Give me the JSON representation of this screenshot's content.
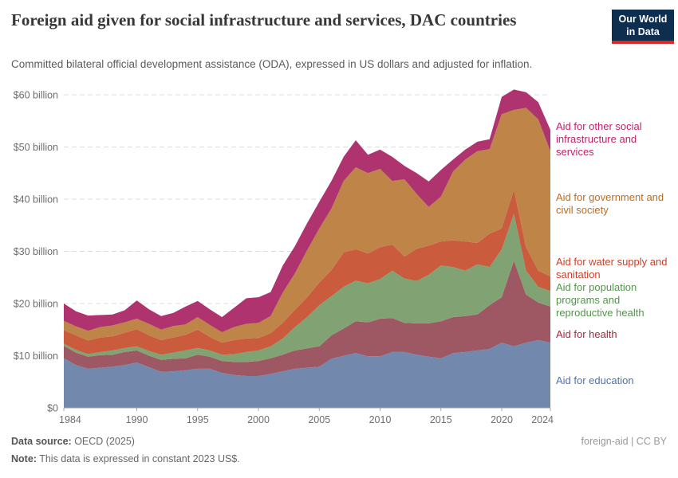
{
  "header": {
    "title": "Foreign aid given for social infrastructure and services, DAC countries",
    "subtitle": "Committed bilateral official development assistance (ODA), expressed in US dollars and adjusted for inflation.",
    "logo_line1": "Our World",
    "logo_line2": "in Data",
    "logo_bg": "#0d2e4e",
    "logo_accent": "#dc2a26"
  },
  "chart_data": {
    "type": "area",
    "stacked": true,
    "title": "Foreign aid given for social infrastructure and services, DAC countries",
    "xlabel": "",
    "ylabel": "",
    "ylim": [
      0,
      60
    ],
    "y_unit": "billion US$ (constant 2023)",
    "grid": "horizontal-dashed",
    "legend_position": "right",
    "x": [
      1984,
      1985,
      1986,
      1987,
      1988,
      1989,
      1990,
      1991,
      1992,
      1993,
      1994,
      1995,
      1996,
      1997,
      1998,
      1999,
      2000,
      2001,
      2002,
      2003,
      2004,
      2005,
      2006,
      2007,
      2008,
      2009,
      2010,
      2011,
      2012,
      2013,
      2014,
      2015,
      2016,
      2017,
      2018,
      2019,
      2020,
      2021,
      2022,
      2023,
      2024
    ],
    "x_ticks": [
      1984,
      1990,
      1995,
      2000,
      2005,
      2010,
      2015,
      2020,
      2024
    ],
    "y_ticks": [
      0,
      10,
      20,
      30,
      40,
      50,
      60
    ],
    "y_tick_labels": [
      "$0",
      "$10 billion",
      "$20 billion",
      "$30 billion",
      "$40 billion",
      "$50 billion",
      "$60 billion"
    ],
    "series": [
      {
        "name": "Aid for education",
        "color": "#7289ad",
        "label_color": "#4c74ad",
        "values": [
          9.5,
          8.2,
          7.5,
          7.7,
          7.9,
          8.2,
          8.7,
          7.8,
          6.9,
          7.0,
          7.2,
          7.5,
          7.5,
          6.7,
          6.3,
          6.1,
          6.1,
          6.5,
          7.0,
          7.5,
          7.7,
          7.9,
          9.4,
          10.0,
          10.5,
          9.9,
          9.9,
          10.7,
          10.7,
          10.2,
          9.8,
          9.5,
          10.5,
          10.7,
          11.0,
          11.3,
          12.5,
          11.8,
          12.5,
          13.0,
          12.5
        ]
      },
      {
        "name": "Aid for health",
        "color": "#9e5864",
        "label_color": "#a02b3d",
        "values": [
          2.4,
          2.4,
          2.3,
          2.4,
          2.3,
          2.5,
          2.3,
          2.2,
          2.3,
          2.4,
          2.3,
          2.7,
          2.3,
          2.3,
          2.5,
          2.7,
          2.9,
          3.0,
          3.2,
          3.5,
          3.7,
          3.9,
          4.5,
          5.2,
          6.1,
          6.5,
          7.2,
          6.5,
          5.6,
          6.0,
          6.4,
          7.1,
          6.9,
          6.9,
          6.9,
          8.4,
          8.7,
          16.4,
          9.2,
          7.2,
          6.9
        ]
      },
      {
        "name": "Aid for population programs and reproductive health",
        "color": "#81a373",
        "label_color": "#55944d",
        "values": [
          0.4,
          0.5,
          0.5,
          0.6,
          0.8,
          0.8,
          0.8,
          0.9,
          1.0,
          1.2,
          1.5,
          1.3,
          1.2,
          1.2,
          1.5,
          1.9,
          2.0,
          2.3,
          3.1,
          4.5,
          6.0,
          7.9,
          7.5,
          8.0,
          7.8,
          7.5,
          7.6,
          9.1,
          8.5,
          8.1,
          9.3,
          10.7,
          9.6,
          8.7,
          9.6,
          7.3,
          9.2,
          9.0,
          4.6,
          3.0,
          3.0
        ]
      },
      {
        "name": "Aid for water supply and sanitation",
        "color": "#ca5b3d",
        "label_color": "#cd3f27",
        "values": [
          2.6,
          2.8,
          2.6,
          2.8,
          2.7,
          2.9,
          3.3,
          3.0,
          2.8,
          2.9,
          3.0,
          3.5,
          2.6,
          2.3,
          2.7,
          2.6,
          2.4,
          2.5,
          3.0,
          3.3,
          3.8,
          4.3,
          5.0,
          6.6,
          6.0,
          5.7,
          6.1,
          5.0,
          4.2,
          6.2,
          5.6,
          4.6,
          5.1,
          5.6,
          4.1,
          6.4,
          4.0,
          4.6,
          4.5,
          3.1,
          2.8
        ]
      },
      {
        "name": "Aid for government and civil society",
        "color": "#bf8447",
        "label_color": "#bd6c20",
        "values": [
          1.8,
          1.7,
          1.9,
          2.0,
          2.1,
          2.0,
          2.0,
          2.2,
          2.0,
          2.2,
          2.0,
          2.4,
          2.3,
          2.0,
          2.5,
          2.8,
          2.9,
          3.3,
          5.8,
          7.0,
          9.0,
          10.4,
          11.8,
          13.7,
          15.7,
          15.4,
          15.0,
          12.2,
          14.8,
          10.5,
          7.4,
          8.6,
          13.2,
          15.7,
          17.6,
          16.2,
          21.9,
          15.3,
          26.7,
          29.0,
          24.0
        ]
      },
      {
        "name": "Aid for other social infrastructure and services",
        "color": "#af336f",
        "label_color": "#c0226b",
        "values": [
          3.3,
          2.9,
          2.9,
          2.3,
          2.1,
          2.3,
          3.5,
          2.8,
          2.6,
          2.5,
          3.4,
          3.1,
          3.0,
          2.9,
          3.7,
          4.9,
          4.9,
          4.6,
          5.2,
          5.2,
          5.2,
          5.1,
          5.3,
          4.6,
          5.2,
          3.5,
          3.7,
          4.6,
          2.6,
          4.0,
          4.9,
          5.1,
          2.3,
          1.9,
          1.8,
          1.9,
          3.3,
          3.9,
          3.0,
          3.3,
          4.1
        ]
      }
    ]
  },
  "footer": {
    "data_source_label": "Data source:",
    "data_source_value": " OECD (2025)",
    "note_label": "Note:",
    "note_value": " This data is expressed in constant 2023 US$.",
    "right": "foreign-aid | CC BY"
  }
}
